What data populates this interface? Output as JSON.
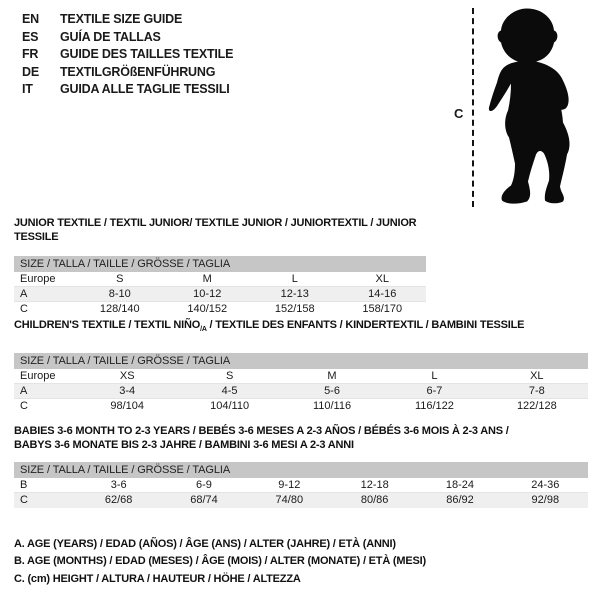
{
  "languages": [
    {
      "code": "EN",
      "label": "TEXTILE SIZE GUIDE"
    },
    {
      "code": "ES",
      "label": "GUÍA DE TALLAS"
    },
    {
      "code": "FR",
      "label": "GUIDE DES TAILLES TEXTILE"
    },
    {
      "code": "DE",
      "label": "TEXTILGRÖßENFÜHRUNG"
    },
    {
      "code": "IT",
      "label": "GUIDA ALLE TAGLIE TESSILI"
    }
  ],
  "figure": {
    "measure_label": "C"
  },
  "colors": {
    "size_bar": "#c6c6c6",
    "shaded_row": "#efefef",
    "text": "#1a1a1a"
  },
  "sections": [
    {
      "title_lines": [
        [
          {
            "text": "JUNIOR TEXTILE / TEXTIL JUNIOR/ TEXTILE JUNIOR / JUNIORTEXTIL / JUNIOR TESSILE"
          }
        ]
      ],
      "size_header": "SIZE / TALLA / TAILLE / GRÖSSE / TAGLIA",
      "rows": [
        {
          "label": "Europe",
          "values": [
            "S",
            "M",
            "L",
            "XL"
          ]
        },
        {
          "label": "A",
          "values": [
            "8-10",
            "10-12",
            "12-13",
            "14-16"
          ]
        },
        {
          "label": "C",
          "values": [
            "128/140",
            "140/152",
            "152/158",
            "158/170"
          ]
        }
      ]
    },
    {
      "title_lines": [
        [
          {
            "text": "CHILDREN'S TEXTILE / TEXTIL NIÑO"
          },
          {
            "text": "/A",
            "sub": true
          },
          {
            "text": " / TEXTILE DES ENFANTS / KINDERTEXTIL / BAMBINI TESSILE"
          }
        ]
      ],
      "size_header": "SIZE / TALLA / TAILLE / GRÖSSE / TAGLIA",
      "rows": [
        {
          "label": "Europe",
          "values": [
            "XS",
            "S",
            "M",
            "L",
            "XL"
          ]
        },
        {
          "label": "A",
          "values": [
            "3-4",
            "4-5",
            "5-6",
            "6-7",
            "7-8"
          ]
        },
        {
          "label": "C",
          "values": [
            "98/104",
            "104/110",
            "110/116",
            "116/122",
            "122/128"
          ]
        }
      ]
    },
    {
      "title_lines": [
        [
          {
            "text": "BABIES 3-6 MONTH TO 2-3 YEARS / BEBÉS 3-6 MESES A 2-3 AÑOS / BÉBÉS 3-6 MOIS À 2-3 ANS /"
          }
        ],
        [
          {
            "text": "BABYS 3-6 MONATE BIS 2-3 JAHRE / BAMBINI 3-6 MESI A 2-3 ANNI"
          }
        ]
      ],
      "size_header": "SIZE / TALLA / TAILLE / GRÖSSE / TAGLIA",
      "rows": [
        {
          "label": "B",
          "values": [
            "3-6",
            "6-9",
            "9-12",
            "12-18",
            "18-24",
            "24-36"
          ]
        },
        {
          "label": "C",
          "values": [
            "62/68",
            "68/74",
            "74/80",
            "80/86",
            "86/92",
            "92/98"
          ]
        }
      ]
    }
  ],
  "footnotes": [
    "A. AGE (YEARS) / EDAD (AÑOS) / ÂGE (ANS) / ALTER (JAHRE) / ETÀ (ANNI)",
    "B. AGE (MONTHS) / EDAD (MESES) / ÂGE (MOIS) / ALTER (MONATE) / ETÀ (MESI)",
    "C. (cm) HEIGHT / ALTURA / HAUTEUR / HÖHE / ALTEZZA"
  ]
}
